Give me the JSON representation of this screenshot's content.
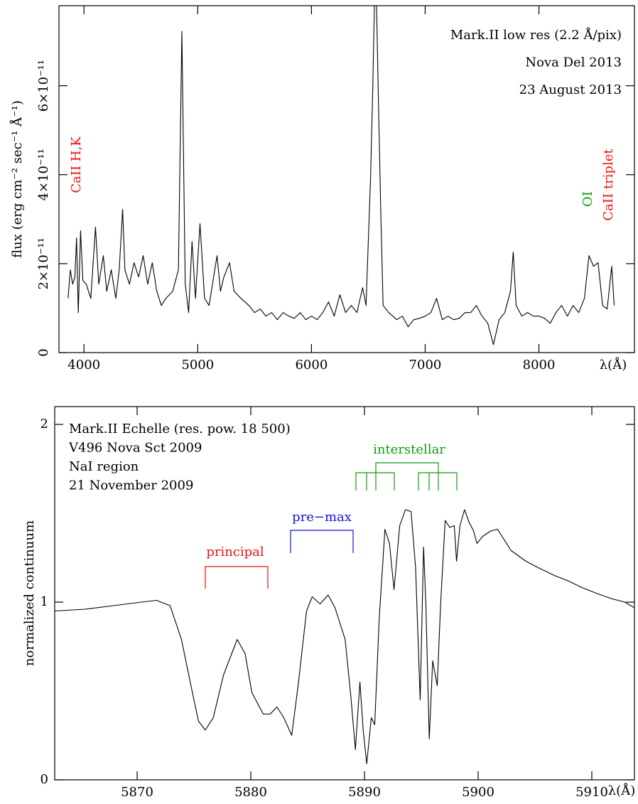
{
  "chart_data": [
    {
      "type": "line",
      "title": [
        "Mark.II low res (2.2 Å/pix)",
        "Nova Del 2013",
        "23 August 2013"
      ],
      "xlabel": "λ(Å)",
      "ylabel": "flux (erg cm⁻² sec⁻¹ Å⁻¹)",
      "annotations": [
        {
          "text": "CaII H,K",
          "color": "#ee1111"
        },
        {
          "text": "OI",
          "color": "#119911"
        },
        {
          "text": "CaII triplet",
          "color": "#ee1111"
        }
      ],
      "color": "#000000",
      "x": [
        3860,
        3880,
        3900,
        3920,
        3935,
        3950,
        3970,
        3990,
        4020,
        4060,
        4101,
        4130,
        4170,
        4200,
        4240,
        4280,
        4310,
        4340,
        4360,
        4400,
        4440,
        4480,
        4520,
        4560,
        4600,
        4640,
        4680,
        4720,
        4780,
        4830,
        4861,
        4890,
        4920,
        4950,
        4980,
        5020,
        5060,
        5100,
        5170,
        5200,
        5230,
        5280,
        5320,
        5380,
        5450,
        5500,
        5550,
        5600,
        5650,
        5700,
        5750,
        5800,
        5850,
        5900,
        5950,
        6000,
        6050,
        6100,
        6150,
        6200,
        6250,
        6300,
        6350,
        6400,
        6450,
        6480,
        6520,
        6540,
        6563,
        6590,
        6610,
        6630,
        6680,
        6750,
        6800,
        6850,
        6900,
        6950,
        7000,
        7050,
        7100,
        7150,
        7200,
        7250,
        7300,
        7350,
        7400,
        7450,
        7500,
        7550,
        7600,
        7650,
        7700,
        7750,
        7774,
        7800,
        7850,
        7900,
        7950,
        8000,
        8050,
        8100,
        8150,
        8200,
        8250,
        8300,
        8350,
        8400,
        8440,
        8480,
        8520,
        8560,
        8600,
        8640,
        8662
      ],
      "values": [
        1.22e-11,
        1.86e-11,
        1.54e-11,
        1.7e-11,
        2.58e-11,
        9e-12,
        2.74e-11,
        1.62e-11,
        1.54e-11,
        1.22e-11,
        2.82e-11,
        1.54e-11,
        2.18e-11,
        1.38e-11,
        1.86e-11,
        1.22e-11,
        1.86e-11,
        3.22e-11,
        1.86e-11,
        1.54e-11,
        2.02e-11,
        1.7e-11,
        2.18e-11,
        1.54e-11,
        2.02e-11,
        1.38e-11,
        1.06e-11,
        1.22e-11,
        1.38e-11,
        1.86e-11,
        7.22e-11,
        1.54e-11,
        9e-12,
        2.5e-11,
        1.22e-11,
        2.9e-11,
        1.22e-11,
        1.06e-11,
        2.18e-11,
        1.38e-11,
        1.7e-11,
        2.02e-11,
        1.38e-11,
        1.22e-11,
        1.06e-11,
        9e-12,
        9.8e-12,
        8.2e-12,
        9e-12,
        7.4e-12,
        9e-12,
        8.2e-12,
        7.7e-12,
        9e-12,
        7.4e-12,
        8.2e-12,
        7.4e-12,
        9e-12,
        1.14e-11,
        8.2e-12,
        1.3e-11,
        9e-12,
        1.06e-11,
        9e-12,
        1.46e-11,
        1.06e-11,
        3.94e-11,
        6.02e-11,
        9e-11,
        5.54e-11,
        3.14e-11,
        1.06e-11,
        9e-12,
        7.4e-12,
        8.2e-12,
        5.8e-12,
        7.4e-12,
        7.7e-12,
        8.2e-12,
        9e-12,
        1.22e-11,
        7.4e-12,
        8.2e-12,
        7.4e-12,
        7.7e-12,
        9e-12,
        9e-12,
        1.06e-11,
        8.2e-12,
        6.6e-12,
        1.8e-12,
        7.4e-12,
        9e-12,
        1.38e-11,
        2.26e-11,
        1.06e-11,
        8.2e-12,
        9e-12,
        8.2e-12,
        8.2e-12,
        7.7e-12,
        6.6e-12,
        9e-12,
        1.06e-11,
        8.2e-12,
        1.06e-11,
        9e-12,
        1.22e-11,
        2.18e-11,
        1.94e-11,
        2.02e-11,
        1.06e-11,
        9.8e-12,
        1.94e-11,
        1.06e-11
      ],
      "xlim": [
        3780,
        8840
      ],
      "ylim": [
        0,
        7.8e-11
      ],
      "xticks": [
        4000,
        5000,
        6000,
        7000,
        8000
      ],
      "yticks": [
        0,
        {
          "value": 2e-11,
          "label": "2×10⁻¹¹"
        },
        {
          "value": 4e-11,
          "label": "4×10⁻¹¹"
        },
        {
          "value": 6e-11,
          "label": "6×10⁻¹¹"
        }
      ]
    },
    {
      "type": "line",
      "title": [
        "Mark.II Echelle (res. pow. 18 500)",
        "V496 Nova Sct 2009",
        "NaI region",
        "21 November 2009"
      ],
      "xlabel": "λ(Å)",
      "ylabel": "normalized continuum",
      "annotations": [
        {
          "text": "principal",
          "color": "#ee1111"
        },
        {
          "text": "pre−max",
          "color": "#1111dd"
        },
        {
          "text": "interstellar",
          "color": "#119911"
        }
      ],
      "color": "#000000",
      "x": [
        5862.75,
        5865.4,
        5867.9,
        5870.4,
        5871.7,
        5872.9,
        5873.9,
        5874.8,
        5875.4,
        5876.0,
        5876.7,
        5877.6,
        5878.8,
        5879.5,
        5880.1,
        5881.1,
        5881.7,
        5882.3,
        5882.9,
        5883.6,
        5884.2,
        5884.9,
        5885.4,
        5886.1,
        5886.8,
        5887.4,
        5888.3,
        5888.8,
        5889.2,
        5889.6,
        5889.9,
        5890.2,
        5890.6,
        5890.9,
        5891.3,
        5891.8,
        5892.2,
        5892.6,
        5893.1,
        5893.6,
        5894.1,
        5894.5,
        5894.9,
        5895.2,
        5895.4,
        5895.7,
        5896.0,
        5896.4,
        5896.7,
        5897.1,
        5897.5,
        5897.9,
        5898.1,
        5898.4,
        5898.8,
        5899.2,
        5899.6,
        5899.9,
        5900.4,
        5901.1,
        5901.7,
        5902.9,
        5904.2,
        5905.4,
        5906.7,
        5907.9,
        5909.2,
        5910.4,
        5911.7,
        5912.9,
        5913.7
      ],
      "values": [
        0.95,
        0.96,
        0.98,
        1.0,
        1.01,
        0.98,
        0.79,
        0.51,
        0.33,
        0.28,
        0.35,
        0.59,
        0.79,
        0.71,
        0.49,
        0.37,
        0.37,
        0.41,
        0.35,
        0.25,
        0.55,
        0.95,
        1.03,
        0.99,
        1.04,
        0.97,
        0.79,
        0.47,
        0.17,
        0.55,
        0.27,
        0.09,
        0.35,
        0.31,
        0.91,
        1.41,
        1.33,
        1.07,
        1.43,
        1.52,
        1.51,
        1.19,
        0.45,
        1.31,
        0.99,
        0.23,
        0.67,
        0.53,
        0.99,
        1.46,
        1.42,
        1.43,
        1.23,
        1.43,
        1.52,
        1.45,
        1.4,
        1.33,
        1.37,
        1.4,
        1.41,
        1.29,
        1.23,
        1.19,
        1.15,
        1.12,
        1.08,
        1.05,
        1.02,
        1.0,
        0.97
      ],
      "xlim": [
        5862.75,
        5913.75
      ],
      "ylim": [
        0,
        2.1
      ],
      "xticks": [
        5870,
        5880,
        5890,
        5900,
        5910
      ],
      "yticks": [
        0,
        1,
        2
      ]
    }
  ]
}
